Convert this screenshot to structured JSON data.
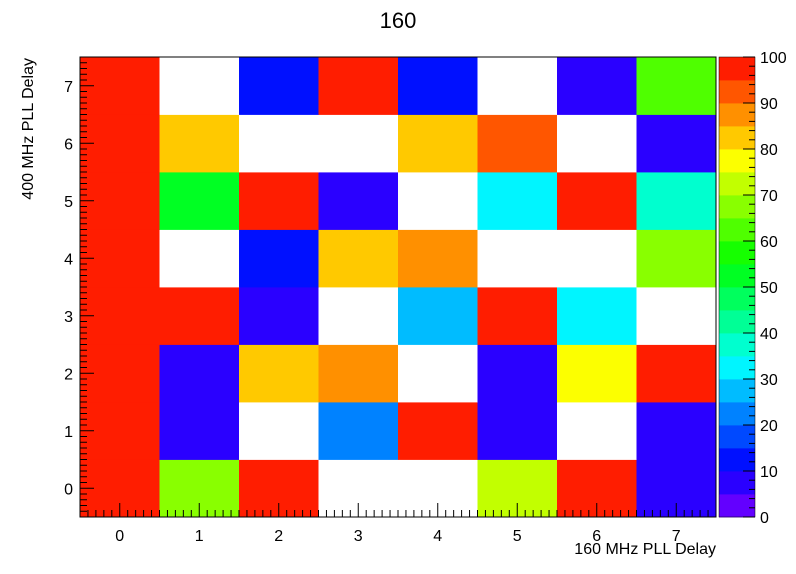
{
  "chart_data": {
    "type": "heatmap",
    "title": "160",
    "xlabel": "160 MHz PLL Delay",
    "ylabel": "400 MHz PLL Delay",
    "x_bins": [
      0,
      1,
      2,
      3,
      4,
      5,
      6,
      7
    ],
    "y_bins": [
      0,
      1,
      2,
      3,
      4,
      5,
      6,
      7
    ],
    "x_ticks": [
      "0",
      "1",
      "2",
      "3",
      "4",
      "5",
      "6",
      "7"
    ],
    "y_ticks": [
      "0",
      "1",
      "2",
      "3",
      "4",
      "5",
      "6",
      "7"
    ],
    "xlim": [
      -0.5,
      7.5
    ],
    "ylim": [
      -0.5,
      7.5
    ],
    "zlim": [
      0,
      100
    ],
    "z_ticks": [
      "0",
      "10",
      "20",
      "30",
      "40",
      "50",
      "60",
      "70",
      "80",
      "90",
      "100"
    ],
    "colorbar_levels": 20,
    "empty_color": "#ffffff",
    "values": [
      [
        100,
        65,
        100,
        null,
        null,
        72,
        100,
        5
      ],
      [
        100,
        5,
        null,
        22,
        100,
        5,
        null,
        5
      ],
      [
        100,
        5,
        82,
        87,
        null,
        5,
        77,
        100
      ],
      [
        100,
        100,
        5,
        null,
        27,
        100,
        32,
        null
      ],
      [
        100,
        null,
        10,
        82,
        87,
        null,
        null,
        67
      ],
      [
        100,
        52,
        100,
        5,
        null,
        32,
        100,
        37
      ],
      [
        100,
        82,
        null,
        null,
        82,
        92,
        null,
        5
      ],
      [
        100,
        null,
        10,
        100,
        10,
        null,
        5,
        62
      ]
    ]
  }
}
